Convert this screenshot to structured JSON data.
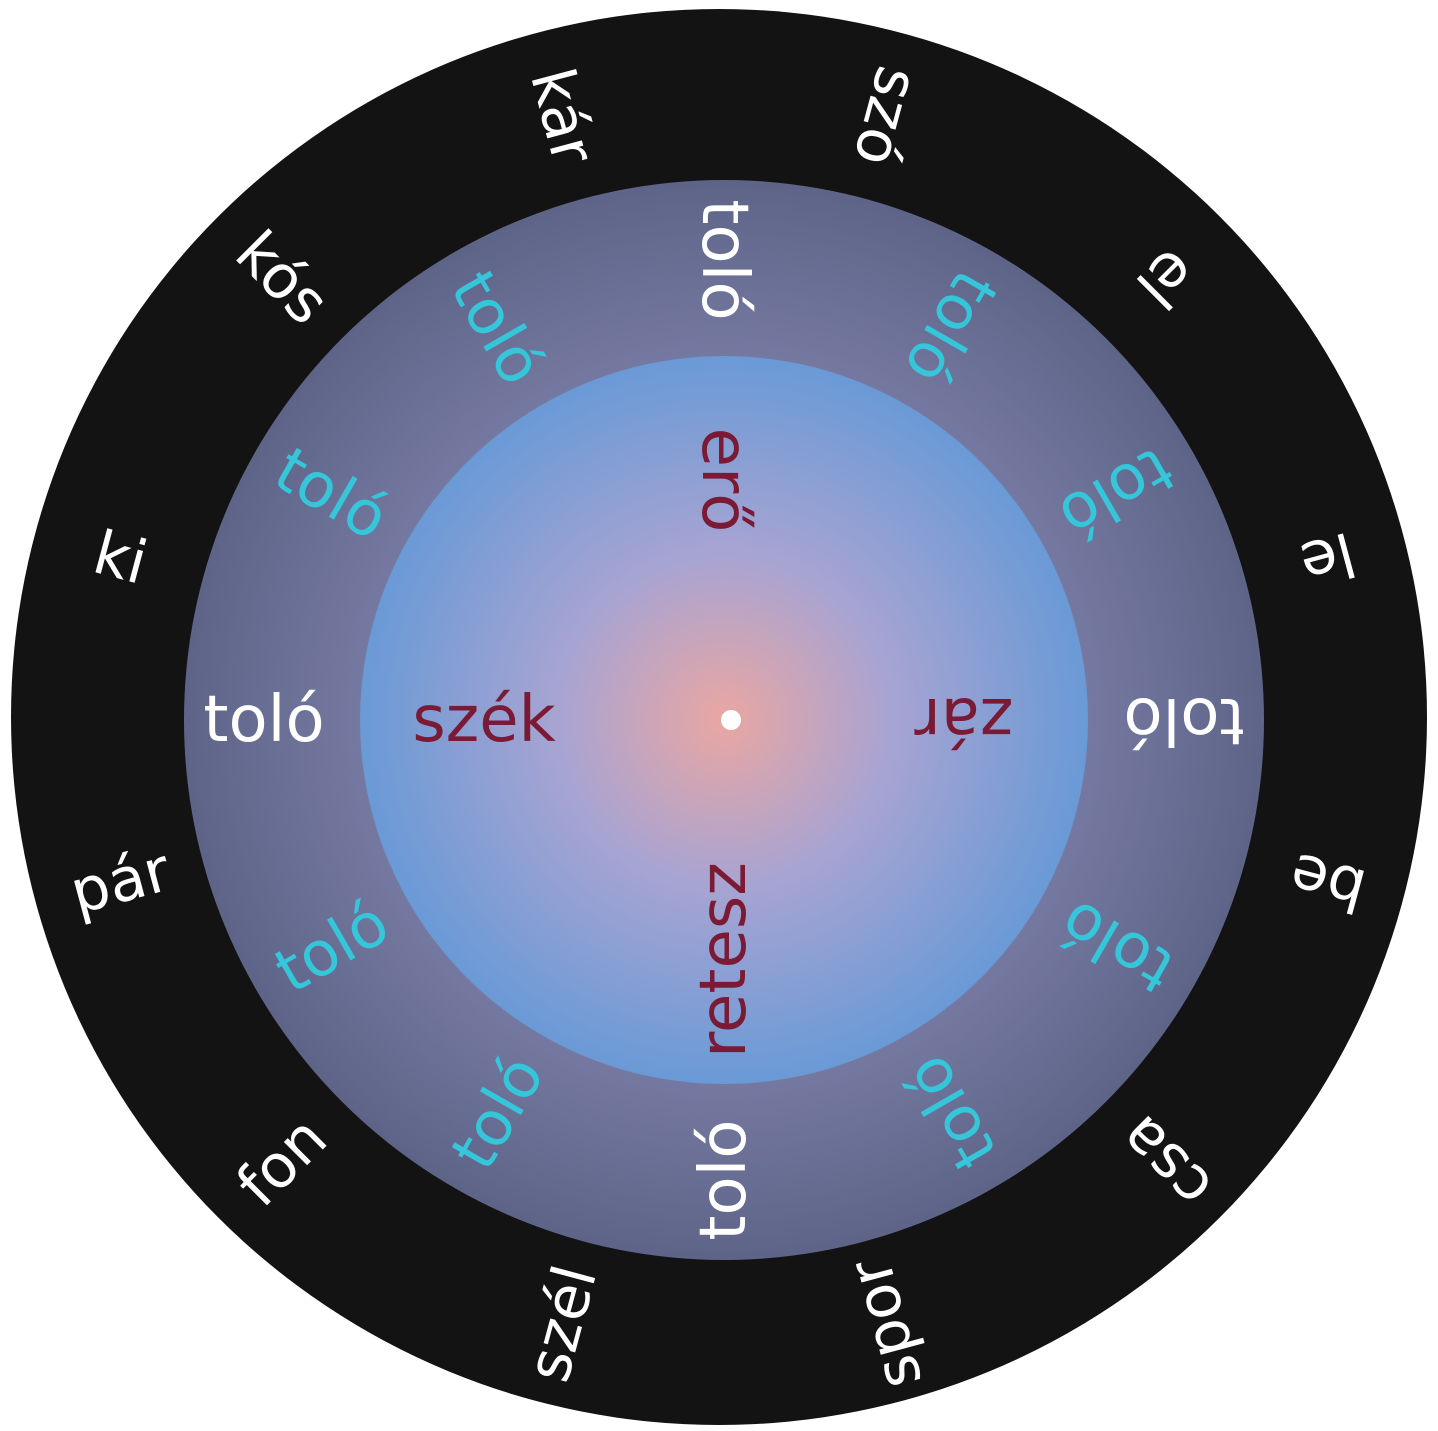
{
  "outer_ring": {
    "words": [
      "szó",
      "el",
      "le",
      "be",
      "csa",
      "spor",
      "szél",
      "fon",
      "pár",
      "ki",
      "kós",
      "kár"
    ],
    "angles_deg": [
      15,
      45,
      75,
      105,
      135,
      165,
      195,
      225,
      255,
      285,
      315,
      345
    ]
  },
  "middle_ring": {
    "word": "toló",
    "angles_deg": [
      30,
      60,
      120,
      150,
      210,
      240,
      300,
      330
    ]
  },
  "axes": [
    {
      "name": "top",
      "angle_deg": 0,
      "first": "toló",
      "second": "erő"
    },
    {
      "name": "right",
      "angle_deg": 90,
      "first": "toló",
      "second": "zár"
    },
    {
      "name": "bottom",
      "angle_deg": 180,
      "first": "toló",
      "second": "retesz"
    },
    {
      "name": "left",
      "angle_deg": 270,
      "first": "toló",
      "second": "szék"
    }
  ],
  "colors": {
    "outer_ring": "#131313",
    "middle_ring": "#6a6f94",
    "inner_disk_edge": "#6e9bd6",
    "center_glow": "#e9a8a6",
    "white_word": "#ffffff",
    "cyan_word": "#35c6da",
    "maroon_word": "#7a1a34",
    "center_dot": "#ffffff"
  }
}
